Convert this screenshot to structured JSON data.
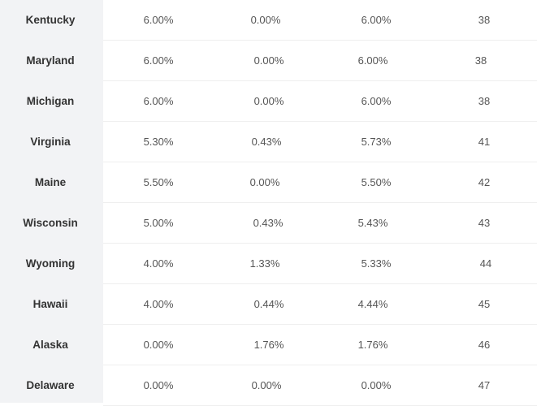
{
  "rows": [
    {
      "state": "Kentucky",
      "state_rate": "6.00%",
      "avg_local_rate": "0.00%",
      "combined_rate": "6.00%",
      "rank": "38"
    },
    {
      "state": "Maryland",
      "state_rate": "6.00%",
      "avg_local_rate": "0.00%",
      "combined_rate": "6.00%",
      "rank": "38"
    },
    {
      "state": "Michigan",
      "state_rate": "6.00%",
      "avg_local_rate": "0.00%",
      "combined_rate": "6.00%",
      "rank": "38"
    },
    {
      "state": "Virginia",
      "state_rate": "5.30%",
      "avg_local_rate": "0.43%",
      "combined_rate": "5.73%",
      "rank": "41"
    },
    {
      "state": "Maine",
      "state_rate": "5.50%",
      "avg_local_rate": "0.00%",
      "combined_rate": "5.50%",
      "rank": "42"
    },
    {
      "state": "Wisconsin",
      "state_rate": "5.00%",
      "avg_local_rate": "0.43%",
      "combined_rate": "5.43%",
      "rank": "43"
    },
    {
      "state": "Wyoming",
      "state_rate": "4.00%",
      "avg_local_rate": "1.33%",
      "combined_rate": "5.33%",
      "rank": "44"
    },
    {
      "state": "Hawaii",
      "state_rate": "4.00%",
      "avg_local_rate": "0.44%",
      "combined_rate": "4.44%",
      "rank": "45"
    },
    {
      "state": "Alaska",
      "state_rate": "0.00%",
      "avg_local_rate": "1.76%",
      "combined_rate": "1.76%",
      "rank": "46"
    },
    {
      "state": "Delaware",
      "state_rate": "0.00%",
      "avg_local_rate": "0.00%",
      "combined_rate": "0.00%",
      "rank": "47"
    }
  ],
  "colors": {
    "state_column_background": "#f2f3f5",
    "row_divider": "#efefef",
    "state_text": "#333333",
    "value_text": "#555555"
  }
}
